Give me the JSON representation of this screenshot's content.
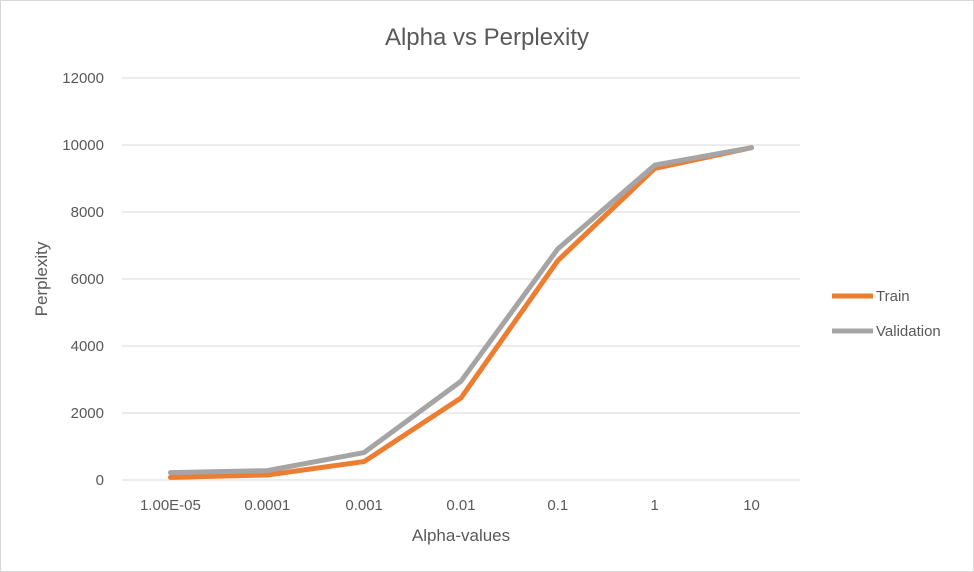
{
  "chart_data": {
    "type": "line",
    "title": "Alpha vs Perplexity",
    "xlabel": "Alpha-values",
    "ylabel": "Perplexity",
    "categories": [
      "1.00E-05",
      "0.0001",
      "0.001",
      "0.01",
      "0.1",
      "1",
      "10"
    ],
    "ylim": [
      0,
      12000
    ],
    "yticks": [
      "0",
      "2000",
      "4000",
      "6000",
      "8000",
      "10000",
      "12000"
    ],
    "grid": true,
    "legend_position": "right",
    "series": [
      {
        "name": "Train",
        "color": "#ED7D31",
        "values": [
          80,
          150,
          550,
          2450,
          6550,
          9300,
          9920
        ]
      },
      {
        "name": "Validation",
        "color": "#A5A5A5",
        "values": [
          220,
          280,
          820,
          2950,
          6900,
          9400,
          9920
        ]
      }
    ]
  }
}
